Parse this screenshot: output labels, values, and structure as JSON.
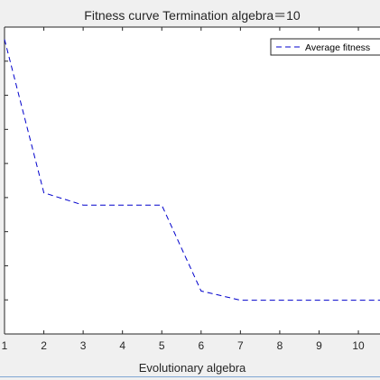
{
  "chart_data": {
    "type": "line",
    "title": "Fitness curve  Termination algebra＝10",
    "xlabel": "Evolutionary algebra",
    "ylabel": "",
    "x": [
      1,
      2,
      3,
      4,
      5,
      6,
      7,
      8,
      9,
      10,
      10.55
    ],
    "xlim": [
      1,
      10.55
    ],
    "ylim": [
      0,
      1
    ],
    "xticks": [
      1,
      2,
      3,
      4,
      5,
      6,
      7,
      8,
      9,
      10
    ],
    "yticks_count": 9,
    "grid": false,
    "legend_position": "top-right",
    "series": [
      {
        "name": "Average fitness",
        "color": "#0000cc",
        "line_style": "dashed",
        "values": [
          0.96,
          0.46,
          0.42,
          0.42,
          0.42,
          0.14,
          0.11,
          0.11,
          0.11,
          0.11,
          0.11
        ]
      }
    ]
  }
}
